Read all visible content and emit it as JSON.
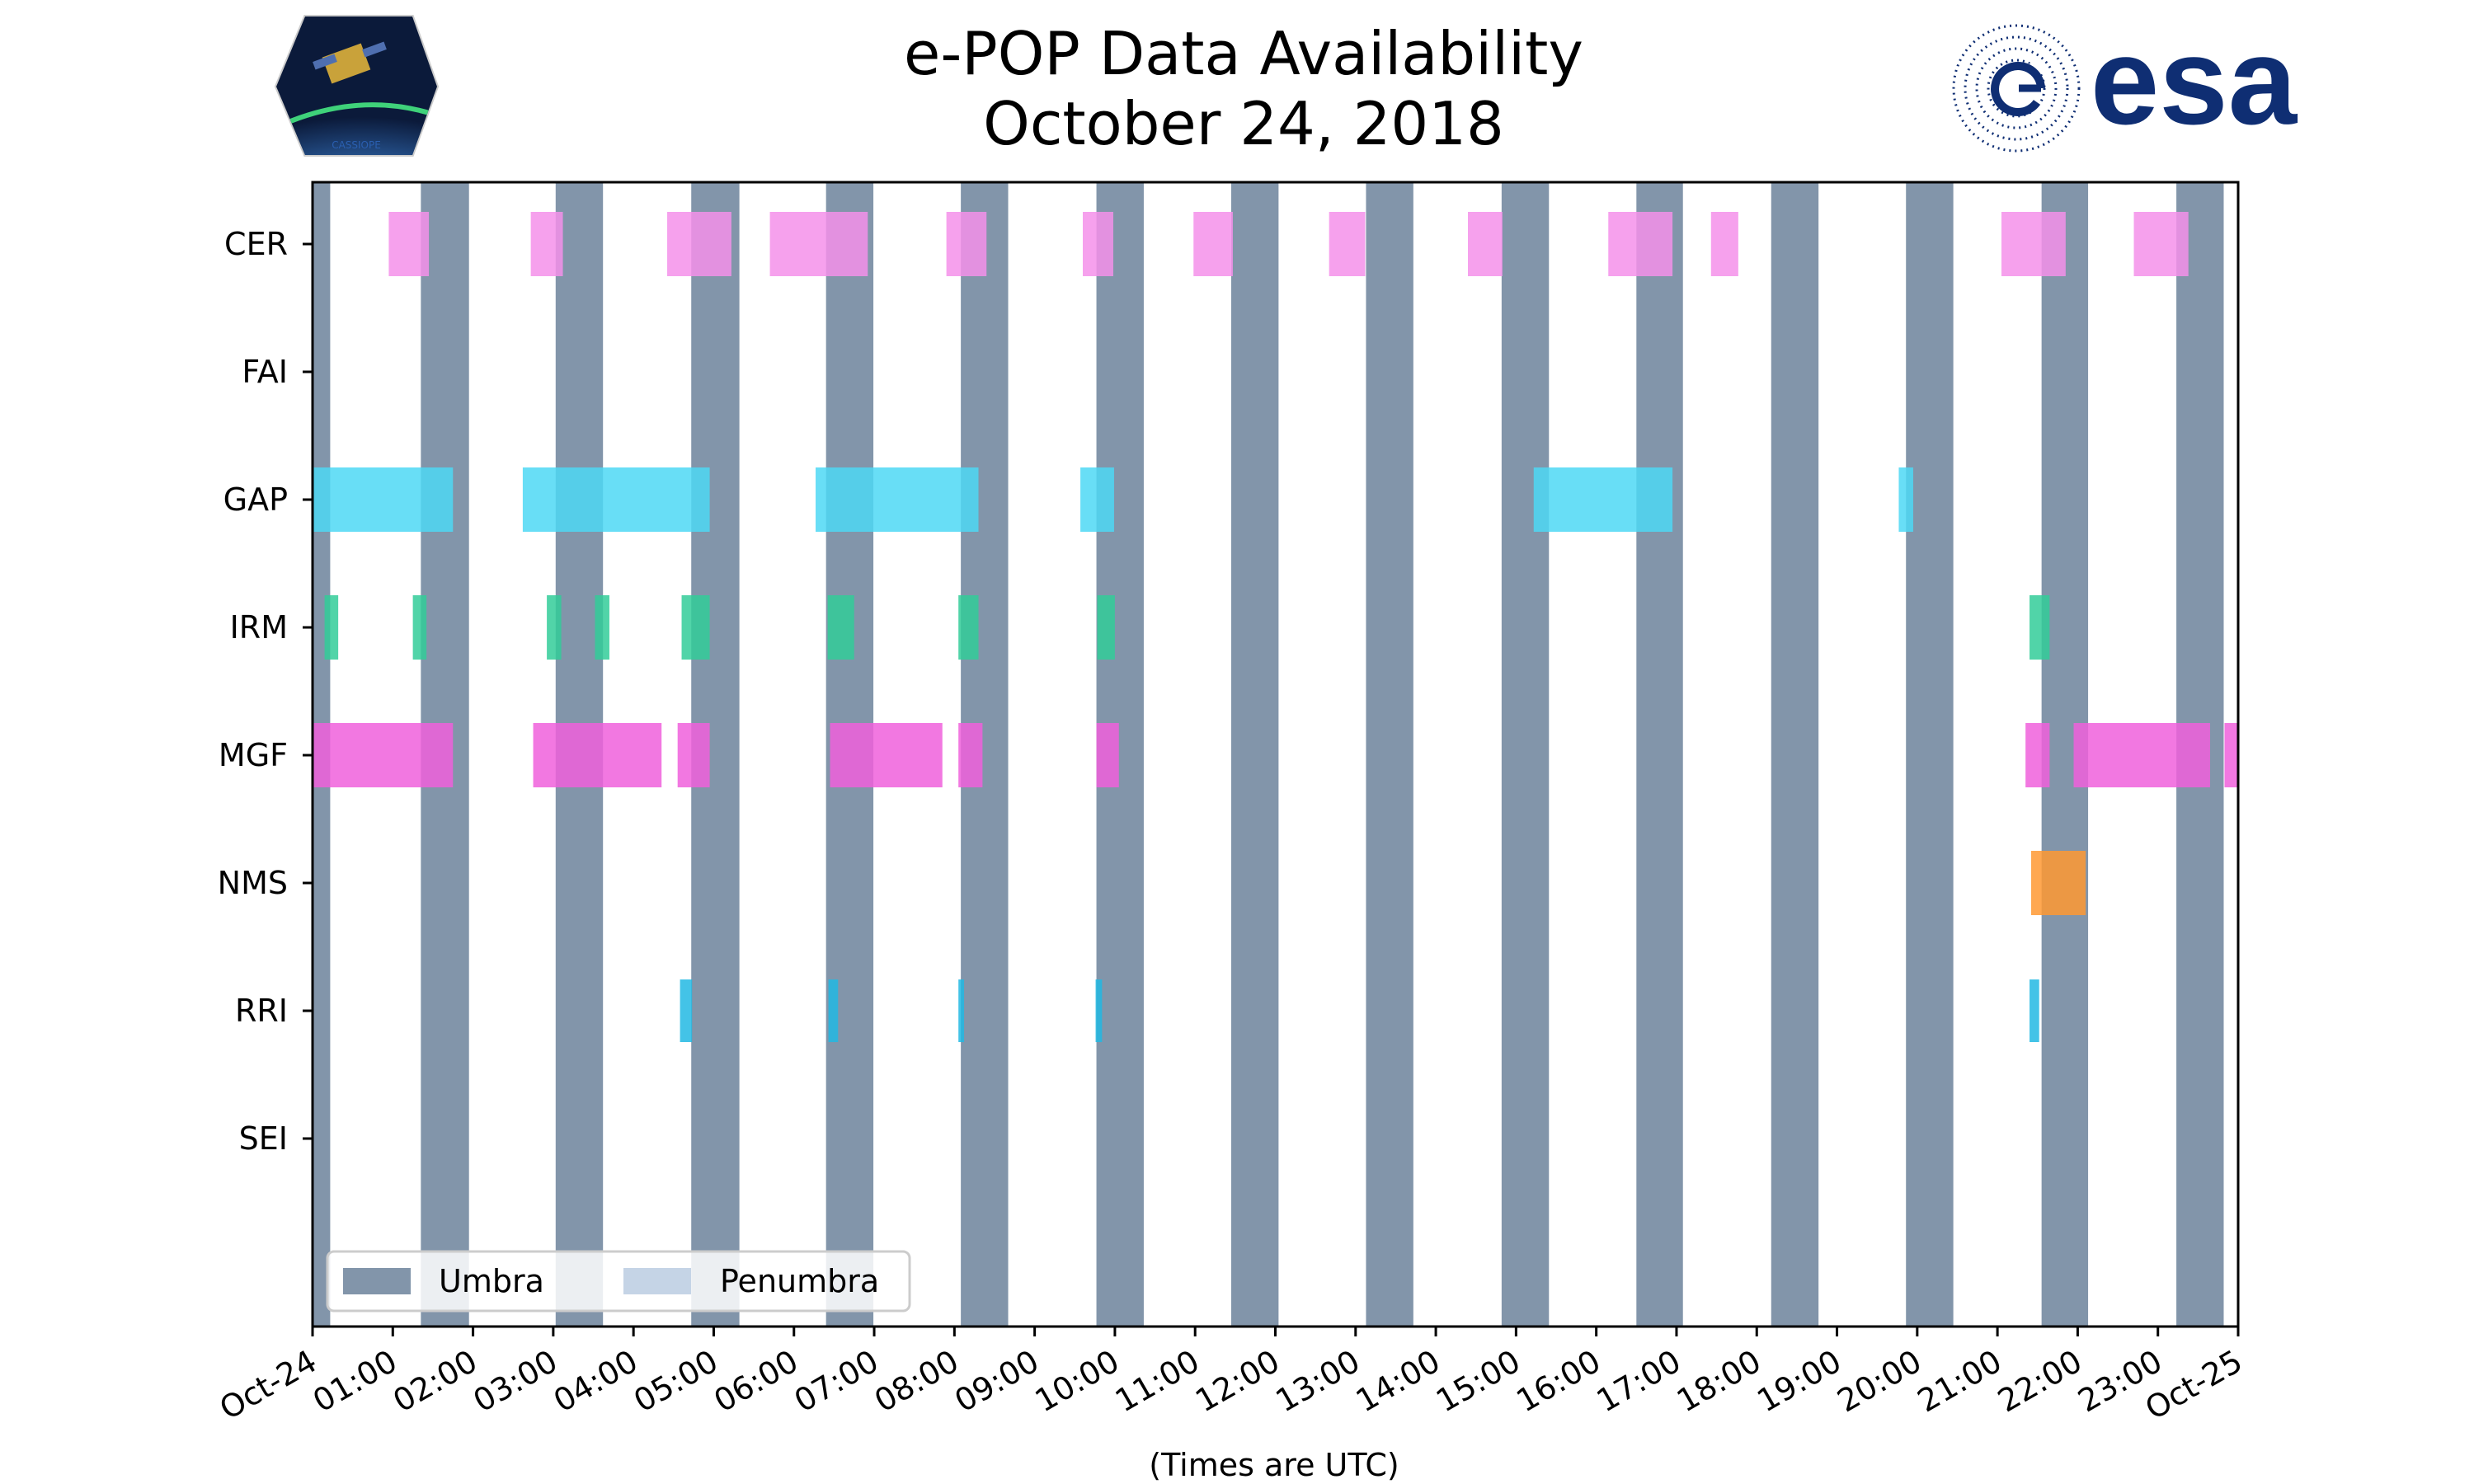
{
  "chart_data": {
    "type": "timeline",
    "title": "e-POP Data Availability",
    "subtitle": "October 24, 2018",
    "xlabel": "(Times are UTC)",
    "xlim_hours": [
      0,
      24
    ],
    "x_tick_labels": [
      "Oct-24",
      "01:00",
      "02:00",
      "03:00",
      "04:00",
      "05:00",
      "06:00",
      "07:00",
      "08:00",
      "09:00",
      "10:00",
      "11:00",
      "12:00",
      "13:00",
      "14:00",
      "15:00",
      "16:00",
      "17:00",
      "18:00",
      "19:00",
      "20:00",
      "21:00",
      "22:00",
      "23:00",
      "Oct-25"
    ],
    "instruments": [
      "CER",
      "FAI",
      "GAP",
      "IRM",
      "MGF",
      "NMS",
      "RRI",
      "SEI"
    ],
    "umbra": [
      [
        -0.1,
        0.22
      ],
      [
        1.35,
        1.95
      ],
      [
        3.03,
        3.62
      ],
      [
        4.72,
        5.32
      ],
      [
        6.4,
        6.99
      ],
      [
        8.08,
        8.67
      ],
      [
        9.77,
        10.36
      ],
      [
        11.45,
        12.04
      ],
      [
        13.13,
        13.72
      ],
      [
        14.82,
        15.41
      ],
      [
        16.5,
        17.08
      ],
      [
        18.18,
        18.77
      ],
      [
        19.86,
        20.45
      ],
      [
        21.55,
        22.13
      ],
      [
        23.23,
        23.82
      ]
    ],
    "series": [
      {
        "name": "CER",
        "color": "#f590ea",
        "intervals": [
          [
            0.95,
            1.45
          ],
          [
            2.72,
            3.12
          ],
          [
            4.42,
            5.22
          ],
          [
            5.7,
            6.92
          ],
          [
            7.9,
            8.4
          ],
          [
            9.6,
            9.98
          ],
          [
            10.98,
            11.47
          ],
          [
            12.67,
            13.12
          ],
          [
            14.4,
            14.83
          ],
          [
            16.15,
            16.95
          ],
          [
            17.43,
            17.77
          ],
          [
            21.05,
            21.85
          ],
          [
            22.7,
            23.38
          ]
        ]
      },
      {
        "name": "FAI",
        "color": "#ff7f0e",
        "intervals": []
      },
      {
        "name": "GAP",
        "color": "#4dd8f5",
        "intervals": [
          [
            0.0,
            1.75
          ],
          [
            2.62,
            4.95
          ],
          [
            6.27,
            8.3
          ],
          [
            9.57,
            9.99
          ],
          [
            15.22,
            16.95
          ],
          [
            19.77,
            19.95
          ]
        ]
      },
      {
        "name": "IRM",
        "color": "#33cc99",
        "intervals": [
          [
            0.15,
            0.32
          ],
          [
            1.25,
            1.42
          ],
          [
            2.92,
            3.1
          ],
          [
            3.52,
            3.7
          ],
          [
            4.6,
            4.95
          ],
          [
            6.42,
            6.75
          ],
          [
            8.05,
            8.3
          ],
          [
            9.78,
            10.0
          ],
          [
            21.4,
            21.65
          ]
        ]
      },
      {
        "name": "MGF",
        "color": "#f060dc",
        "intervals": [
          [
            0.0,
            1.75
          ],
          [
            2.75,
            4.35
          ],
          [
            4.55,
            4.95
          ],
          [
            6.45,
            7.85
          ],
          [
            8.05,
            8.35
          ],
          [
            9.77,
            10.05
          ],
          [
            21.35,
            21.65
          ],
          [
            21.95,
            23.65
          ],
          [
            23.83,
            24.0
          ]
        ]
      },
      {
        "name": "NMS",
        "color": "#ff9933",
        "intervals": [
          [
            21.42,
            22.1
          ]
        ]
      },
      {
        "name": "RRI",
        "color": "#22b8e3",
        "intervals": [
          [
            4.58,
            4.73
          ],
          [
            6.43,
            6.55
          ],
          [
            8.05,
            8.12
          ],
          [
            9.76,
            9.84
          ],
          [
            21.4,
            21.52
          ]
        ]
      },
      {
        "name": "SEI",
        "color": "#888888",
        "intervals": []
      }
    ],
    "legend": {
      "location": "lower-left",
      "entries": [
        {
          "label": "Umbra",
          "color": "#8295aa"
        },
        {
          "label": "Penumbra",
          "color": "#c5d4e6"
        }
      ]
    }
  },
  "logos": {
    "left_icon": "cassiope-mission-badge",
    "left_caption": "CASSIOPE",
    "right_icon": "esa-logo",
    "right_text": "esa"
  },
  "colors": {
    "umbra": "#8295aa",
    "penumbra": "#c5d4e6",
    "esa_blue": "#0f2e73"
  }
}
